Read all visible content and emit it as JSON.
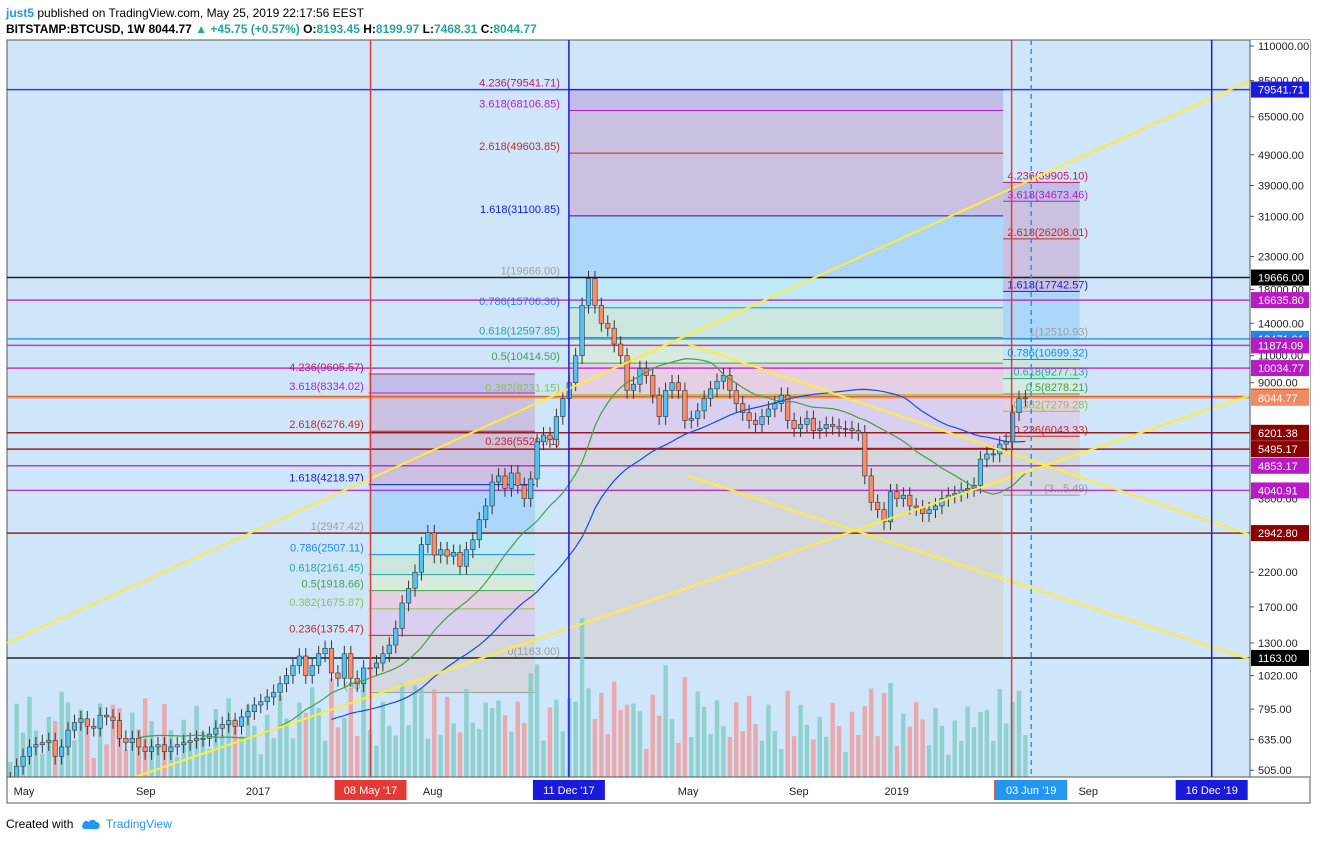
{
  "header": {
    "user": "just5",
    "published": "published on TradingView.com, May 25, 2019 22:17:56 EEST",
    "symbol": "BITSTAMP:BTCUSD, 1W",
    "last": "8044.77",
    "change": "▲ +45.75 (+0.57%)",
    "o_label": "O:",
    "o": "8193.45",
    "h_label": "H:",
    "h": "8199.97",
    "l_label": "L:",
    "l": "7468.31",
    "c_label": "C:",
    "c": "8044.77"
  },
  "footer": {
    "created": "Created with",
    "brand": "TradingView"
  },
  "chart_data": {
    "type": "candlestick",
    "scale": "log",
    "ylim": [
      480,
      115000
    ],
    "y_ticks": [
      110000,
      85000,
      65000,
      49000,
      39000,
      31000,
      23000,
      18000,
      14000,
      11000,
      9000,
      3800,
      2200,
      1700,
      1300,
      1020,
      795,
      635,
      505
    ],
    "y_tick_labels": [
      "110000.00",
      "85000.00",
      "65000.00",
      "49000.00",
      "39000.00",
      "31000.00",
      "23000.00",
      "18000.00",
      "14000.00",
      "11000.00",
      "9000.00",
      "3800.00",
      "2200.00",
      "1700.00",
      "1300.00",
      "1020.00",
      "795.00",
      "635.00",
      "505.00"
    ],
    "x_ticks": [
      {
        "label": "May",
        "t": 0.02
      },
      {
        "label": "Sep",
        "t": 0.163
      },
      {
        "label": "2017",
        "t": 0.295
      },
      {
        "label": "Aug",
        "t": 0.5
      },
      {
        "label": "May",
        "t": 0.8
      },
      {
        "label": "Sep",
        "t": 0.93
      },
      {
        "label": "2019",
        "t": 1.045
      },
      {
        "label": "Sep",
        "t": 1.27
      }
    ],
    "date_markers": [
      {
        "label": "08 May '17",
        "color": "#e53935",
        "t": 0.427
      },
      {
        "label": "11 Dec '17",
        "color": "#1a1adc",
        "t": 0.66
      },
      {
        "label": "06 /",
        "color": "#e53935",
        "t": 1.18
      },
      {
        "label": "03 Jun '19",
        "color": "#2196f3",
        "t": 1.203
      },
      {
        "label": "16 Dec '19",
        "color": "#1a1adc",
        "t": 1.415
      }
    ],
    "price_badges": [
      {
        "label": "79541.71",
        "value": 79541.71,
        "color": "#1a1adc"
      },
      {
        "label": "19666.00",
        "value": 19666,
        "color": "#000000"
      },
      {
        "label": "16635.80",
        "value": 16635.8,
        "color": "#b71cc4"
      },
      {
        "label": "12471.91",
        "value": 12471.91,
        "color": "#1e88e5"
      },
      {
        "label": "11874.09",
        "value": 11874.09,
        "color": "#b71cc4"
      },
      {
        "label": "10034.77",
        "value": 10034.77,
        "color": "#b71cc4"
      },
      {
        "label": "8121.26",
        "value": 8121.26,
        "color": "#e65100"
      },
      {
        "label": "8044.77",
        "value": 8044.77,
        "color": "#ef8a62"
      },
      {
        "label": "6201.38",
        "value": 6201.38,
        "color": "#8b0000"
      },
      {
        "label": "5495.17",
        "value": 5495.17,
        "color": "#8b0000"
      },
      {
        "label": "4853.17",
        "value": 4853.17,
        "color": "#b71cc4"
      },
      {
        "label": "4040.91",
        "value": 4040.91,
        "color": "#b71cc4"
      },
      {
        "label": "2942.80",
        "value": 2942.8,
        "color": "#8b0000"
      },
      {
        "label": "1163.00",
        "value": 1163,
        "color": "#000000"
      }
    ],
    "fib_sets": [
      {
        "levels": [
          {
            "label": "4.236(9605.57)",
            "value": 9605.57,
            "color": "#c2185b"
          },
          {
            "label": "3.618(8334.02)",
            "value": 8334.02,
            "color": "#b71cc4"
          },
          {
            "label": "2.618(6276.49)",
            "value": 6276.49,
            "color": "#c62828"
          },
          {
            "label": "1.618(4218.97)",
            "value": 4218.97,
            "color": "#1a1adc"
          },
          {
            "label": "1(2947.42)",
            "value": 2947.42,
            "color": "#9e9e9e"
          },
          {
            "label": "0.786(2507.11)",
            "value": 2507.11,
            "color": "#1e88e5"
          },
          {
            "label": "0.618(2161.45)",
            "value": 2161.45,
            "color": "#26a69a"
          },
          {
            "label": "0.5(1918.66)",
            "value": 1918.66,
            "color": "#43a047"
          },
          {
            "label": "0.382(1675.87)",
            "value": 1675.87,
            "color": "#8bc34a"
          },
          {
            "label": "0.236(1375.47)",
            "value": 1375.47,
            "color": "#c62828"
          },
          {
            "label": "(90)",
            "value": 900,
            "color": "#9e9e9e"
          }
        ]
      },
      {
        "levels": [
          {
            "label": "4.236(79541.71)",
            "value": 79541.71,
            "color": "#c2185b"
          },
          {
            "label": "3.618(68106.85)",
            "value": 68106.85,
            "color": "#b71cc4"
          },
          {
            "label": "2.618(49603.85)",
            "value": 49603.85,
            "color": "#c62828"
          },
          {
            "label": "1.618(31100.85)",
            "value": 31100.85,
            "color": "#1a1adc"
          },
          {
            "label": "1(19666.00)",
            "value": 19666,
            "color": "#9e9e9e"
          },
          {
            "label": "0.786(15706.36)",
            "value": 15706.36,
            "color": "#1e88e5"
          },
          {
            "label": "0.618(12597.85)",
            "value": 12597.85,
            "color": "#26a69a"
          },
          {
            "label": "0.5(10414.50)",
            "value": 10414.5,
            "color": "#43a047"
          },
          {
            "label": "0.382(8231.15)",
            "value": 8231.15,
            "color": "#8bc34a"
          },
          {
            "label": "0.236(5529.71)",
            "value": 5529.71,
            "color": "#c62828"
          },
          {
            "label": "0(1163.00)",
            "value": 1163,
            "color": "#9e9e9e"
          }
        ]
      },
      {
        "levels": [
          {
            "label": "4.236(39905.10)",
            "value": 39905.1,
            "color": "#c2185b"
          },
          {
            "label": "3.618(34673.46)",
            "value": 34673.46,
            "color": "#b71cc4"
          },
          {
            "label": "2.618(26208.01)",
            "value": 26208.01,
            "color": "#c62828"
          },
          {
            "label": "1.618(17742.57)",
            "value": 17742.57,
            "color": "#1a1adc"
          },
          {
            "label": "1(12510.93)",
            "value": 12510.93,
            "color": "#9e9e9e"
          },
          {
            "label": "0.786(10699.32)",
            "value": 10699.32,
            "color": "#1e88e5"
          },
          {
            "label": "0.618(9277.13)",
            "value": 9277.13,
            "color": "#26a69a"
          },
          {
            "label": "0.5(8278.21)",
            "value": 8278.21,
            "color": "#43a047"
          },
          {
            "label": "0.382(7279.28)",
            "value": 7279.28,
            "color": "#8bc34a"
          },
          {
            "label": "0.236(6043.33)",
            "value": 6043.33,
            "color": "#c62828"
          },
          {
            "label": "(3...5.49)",
            "value": 3900,
            "color": "#9e9e9e"
          }
        ]
      }
    ],
    "candles_close": [
      470,
      520,
      560,
      600,
      610,
      620,
      630,
      560,
      600,
      680,
      720,
      740,
      700,
      690,
      760,
      750,
      730,
      640,
      620,
      640,
      600,
      580,
      600,
      610,
      580,
      600,
      610,
      620,
      630,
      640,
      640,
      660,
      690,
      710,
      730,
      700,
      750,
      780,
      820,
      840,
      870,
      900,
      960,
      1020,
      1100,
      1180,
      1020,
      1100,
      1200,
      1250,
      1040,
      1000,
      1200,
      1000,
      960,
      1080,
      1080,
      1120,
      1200,
      1280,
      1450,
      1750,
      1950,
      2200,
      2700,
      2950,
      2500,
      2600,
      2480,
      2550,
      2300,
      2600,
      2800,
      3250,
      3600,
      4300,
      4500,
      4100,
      4600,
      4200,
      3800,
      4400,
      5800,
      6100,
      5900,
      7000,
      8000,
      9000,
      11000,
      16000,
      19500,
      16000,
      14000,
      13500,
      12000,
      11000,
      8500,
      8900,
      10000,
      9500,
      8200,
      7000,
      8500,
      9000,
      8500,
      6800,
      6900,
      7300,
      8000,
      8600,
      9100,
      9500,
      8500,
      7700,
      7200,
      6800,
      6600,
      7000,
      7400,
      7700,
      8200,
      6800,
      6400,
      6600,
      6900,
      6300,
      6400,
      6600,
      6500,
      6400,
      6400,
      6300,
      6200,
      4500,
      3700,
      3500,
      3200,
      4000,
      3800,
      3900,
      3600,
      3550,
      3400,
      3500,
      3600,
      3800,
      3900,
      3950,
      4050,
      4100,
      4200,
      5100,
      5300,
      5300,
      5700,
      5800,
      7200,
      8000,
      8044.77
    ],
    "volume_max": 100
  }
}
